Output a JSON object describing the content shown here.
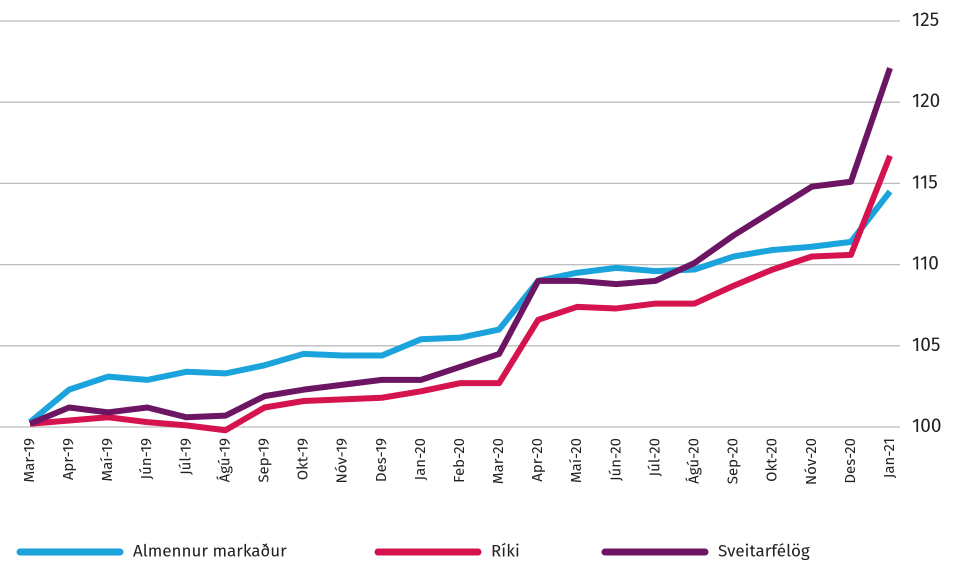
{
  "chart_data": {
    "type": "line",
    "categories": [
      "Mar-19",
      "Apr-19",
      "Maí-19",
      "Jún-19",
      "Júl-19",
      "Ágú-19",
      "Sep-19",
      "Okt-19",
      "Nóv-19",
      "Des-19",
      "Jan-20",
      "Feb-20",
      "Mar-20",
      "Apr-20",
      "Maí-20",
      "Jún-20",
      "Júl-20",
      "Ágú-20",
      "Sep-20",
      "Okt-20",
      "Nóv-20",
      "Des-20",
      "Jan-21"
    ],
    "series": [
      {
        "name": "Almennur markaður",
        "color": "#1ba3dc",
        "values": [
          100.3,
          102.3,
          103.1,
          102.9,
          103.4,
          103.3,
          103.8,
          104.5,
          104.4,
          104.4,
          105.4,
          105.5,
          106.0,
          109.0,
          109.5,
          109.8,
          109.6,
          109.7,
          110.5,
          110.9,
          111.1,
          111.4,
          114.5
        ]
      },
      {
        "name": "Ríki",
        "color": "#d5134f",
        "values": [
          100.2,
          100.4,
          100.6,
          100.3,
          100.1,
          99.8,
          101.2,
          101.6,
          101.7,
          101.8,
          102.2,
          102.7,
          102.7,
          106.6,
          107.4,
          107.3,
          107.6,
          107.6,
          108.7,
          109.7,
          110.5,
          110.6,
          116.7
        ]
      },
      {
        "name": "Sveitarfélög",
        "color": "#6c1563",
        "values": [
          100.2,
          101.2,
          100.9,
          101.2,
          100.6,
          100.7,
          101.9,
          102.3,
          102.6,
          102.9,
          102.9,
          103.7,
          104.5,
          109.0,
          109.0,
          108.8,
          109.0,
          110.1,
          111.8,
          113.3,
          114.8,
          115.1,
          122.1
        ]
      }
    ],
    "ylim": [
      100,
      125
    ],
    "yticks": [
      100,
      105,
      110,
      115,
      120,
      125
    ],
    "grid": true,
    "legend": "bottom"
  }
}
